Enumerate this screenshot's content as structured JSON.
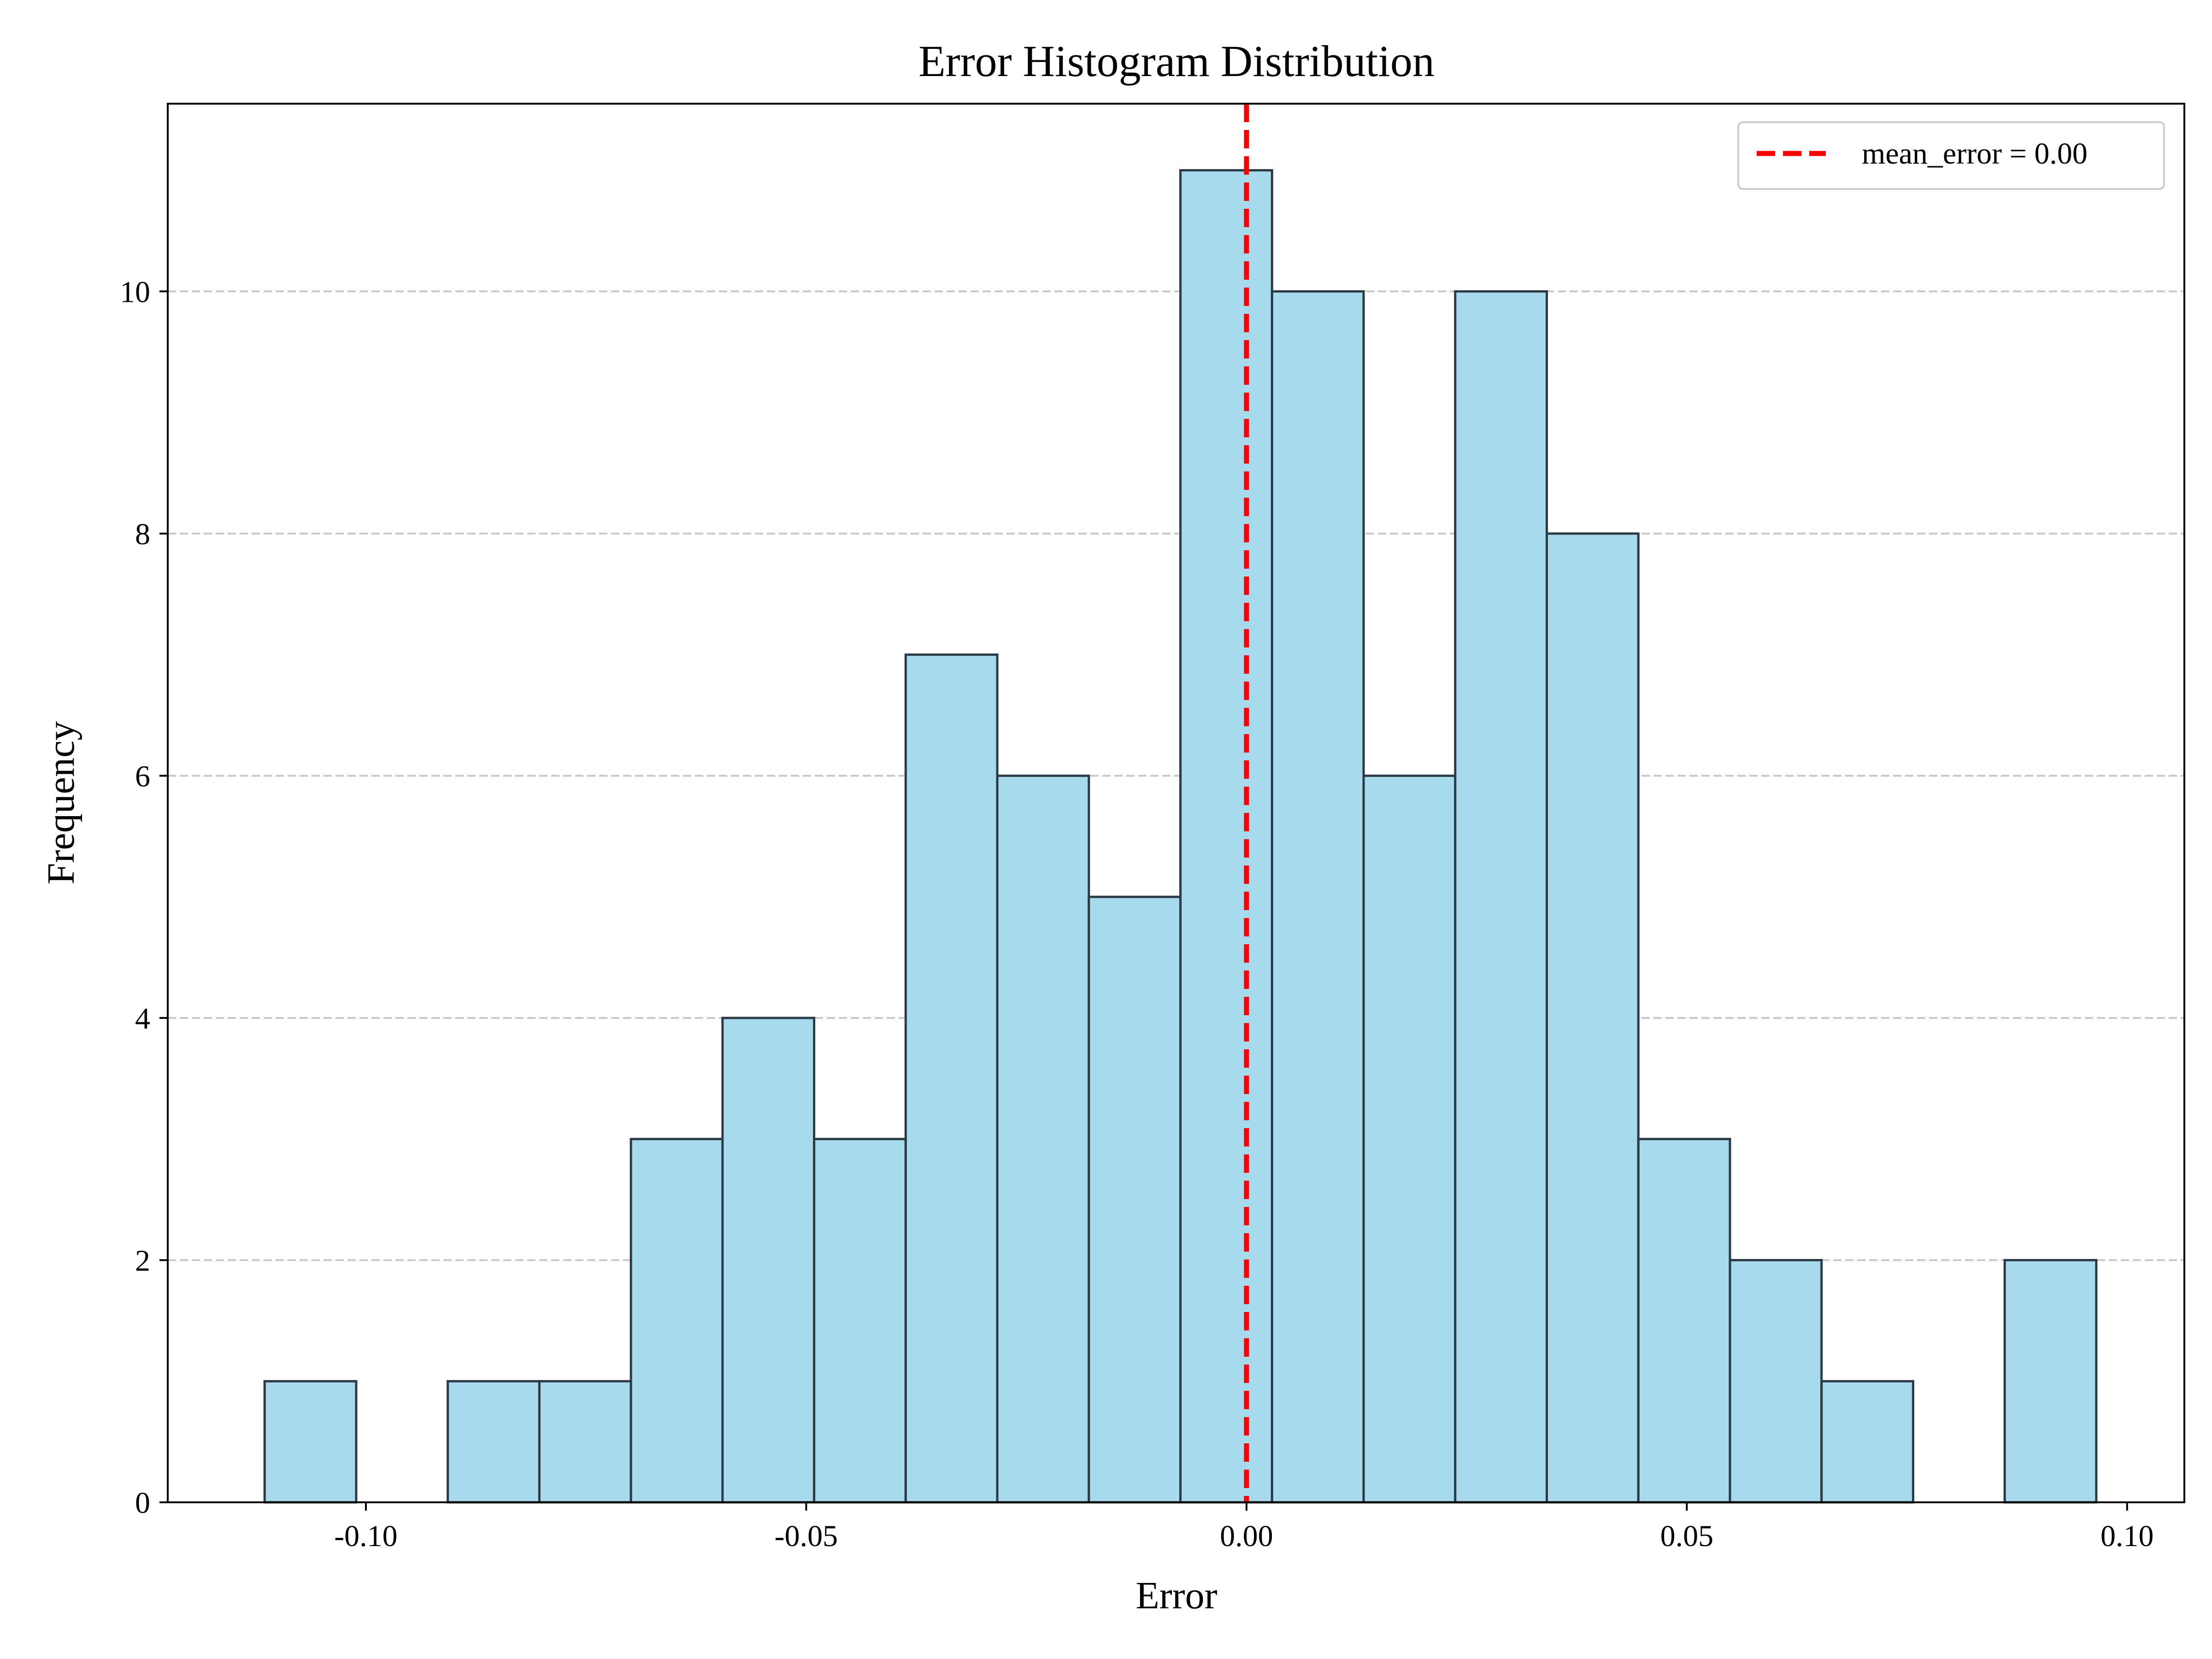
{
  "chart_data": {
    "type": "bar",
    "title": "Error Histogram Distribution",
    "xlabel": "Error",
    "ylabel": "Frequency",
    "bins": [
      {
        "x0": -0.1115,
        "x1": -0.1011,
        "count": 1
      },
      {
        "x0": -0.1011,
        "x1": -0.0907,
        "count": 0
      },
      {
        "x0": -0.0907,
        "x1": -0.0803,
        "count": 1
      },
      {
        "x0": -0.0803,
        "x1": -0.0699,
        "count": 1
      },
      {
        "x0": -0.0699,
        "x1": -0.0595,
        "count": 3
      },
      {
        "x0": -0.0595,
        "x1": -0.0491,
        "count": 4
      },
      {
        "x0": -0.0491,
        "x1": -0.0387,
        "count": 3
      },
      {
        "x0": -0.0387,
        "x1": -0.0283,
        "count": 7
      },
      {
        "x0": -0.0283,
        "x1": -0.0179,
        "count": 6
      },
      {
        "x0": -0.0179,
        "x1": -0.0075,
        "count": 5
      },
      {
        "x0": -0.0075,
        "x1": 0.0029,
        "count": 11
      },
      {
        "x0": 0.0029,
        "x1": 0.0133,
        "count": 10
      },
      {
        "x0": 0.0133,
        "x1": 0.0237,
        "count": 6
      },
      {
        "x0": 0.0237,
        "x1": 0.0341,
        "count": 10
      },
      {
        "x0": 0.0341,
        "x1": 0.0445,
        "count": 8
      },
      {
        "x0": 0.0445,
        "x1": 0.0549,
        "count": 3
      },
      {
        "x0": 0.0549,
        "x1": 0.0653,
        "count": 2
      },
      {
        "x0": 0.0653,
        "x1": 0.0757,
        "count": 1
      },
      {
        "x0": 0.0757,
        "x1": 0.0861,
        "count": 0
      },
      {
        "x0": 0.0861,
        "x1": 0.0965,
        "count": 2
      }
    ],
    "mean_line": {
      "x": 0.0,
      "label": "mean_error = 0.00",
      "color": "#ff0000",
      "style": "dashed"
    },
    "xlim": [
      -0.1225,
      0.1065
    ],
    "ylim": [
      0,
      11.55
    ],
    "xticks": [
      {
        "value": -0.1,
        "label": "-0.10"
      },
      {
        "value": -0.05,
        "label": "-0.05"
      },
      {
        "value": 0.0,
        "label": "0.00"
      },
      {
        "value": 0.05,
        "label": "0.05"
      },
      {
        "value": 0.1,
        "label": "0.10"
      }
    ],
    "yticks": [
      {
        "value": 0,
        "label": "0"
      },
      {
        "value": 2,
        "label": "2"
      },
      {
        "value": 4,
        "label": "4"
      },
      {
        "value": 6,
        "label": "6"
      },
      {
        "value": 8,
        "label": "8"
      },
      {
        "value": 10,
        "label": "10"
      }
    ],
    "grid": {
      "axis": "y",
      "style": "dashed",
      "color": "#c8c8c8"
    },
    "bar_color": "#a8daed",
    "bar_edge_color": "#2b3a44",
    "legend": {
      "position": "top-right",
      "entries": [
        "mean_error = 0.00"
      ]
    }
  }
}
